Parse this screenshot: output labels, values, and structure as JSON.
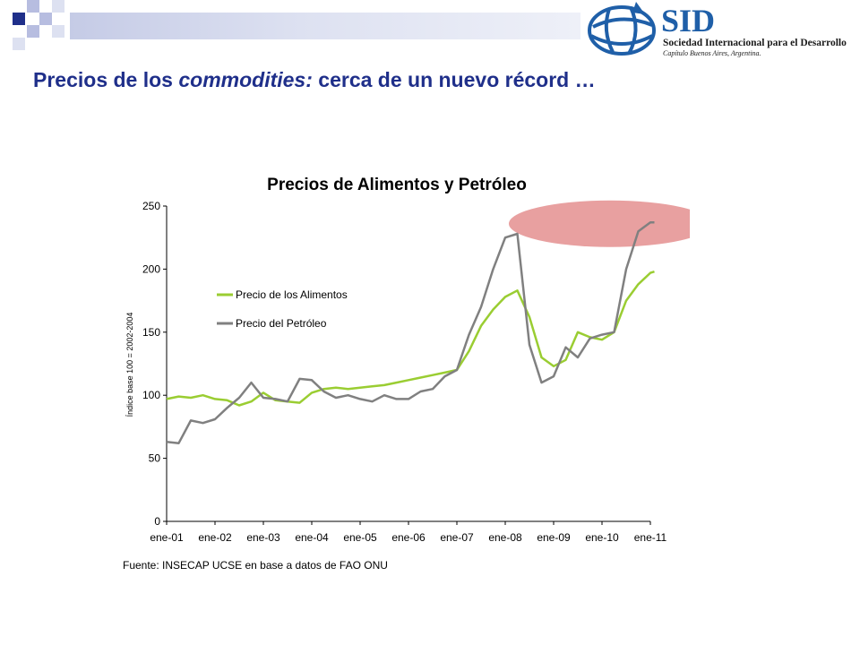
{
  "slide": {
    "title_a": "Precios de los ",
    "title_b": "commodities:",
    "title_c": " cerca de un nuevo récord …"
  },
  "logo": {
    "acronym": "SID",
    "line1": "Sociedad Internacional para el Desarrollo",
    "line2": "Capítulo Buenos Aires, Argentina."
  },
  "colors": {
    "title": "#1f2f8a",
    "deco_dark": "#1f2f8a",
    "deco_light": "#b7bde0",
    "food": "#9acd32",
    "oil": "#808080",
    "highlight": "#e8a0a0"
  },
  "chart_data": {
    "type": "line",
    "title": "Precios de Alimentos y Petróleo",
    "ylabel": "Índice base 100 = 2002-2004",
    "xlabel": "",
    "ylim": [
      0,
      250
    ],
    "yticks": [
      0,
      50,
      100,
      150,
      200,
      250
    ],
    "xticks": [
      "ene-01",
      "ene-02",
      "ene-03",
      "ene-04",
      "ene-05",
      "ene-06",
      "ene-07",
      "ene-08",
      "ene-09",
      "ene-10",
      "ene-11"
    ],
    "legend_position": "upper-left",
    "grid": false,
    "source": "Fuente: INSECAP UCSE en base a datos de FAO ONU",
    "x_months_since_jan_2001": [
      0,
      3,
      6,
      9,
      12,
      15,
      18,
      21,
      24,
      27,
      30,
      33,
      36,
      39,
      42,
      45,
      48,
      51,
      54,
      57,
      60,
      63,
      66,
      69,
      72,
      75,
      78,
      81,
      84,
      87,
      90,
      93,
      96,
      99,
      102,
      105,
      108,
      111,
      114,
      117,
      120,
      121
    ],
    "series": [
      {
        "name": "Precio de los Alimentos",
        "values": [
          97,
          99,
          98,
          100,
          97,
          96,
          92,
          95,
          102,
          96,
          95,
          94,
          102,
          105,
          106,
          105,
          106,
          107,
          108,
          110,
          112,
          114,
          116,
          118,
          120,
          135,
          155,
          168,
          178,
          183,
          162,
          130,
          123,
          128,
          150,
          146,
          144,
          150,
          175,
          188,
          197,
          198
        ]
      },
      {
        "name": "Precio del Petróleo",
        "values": [
          63,
          62,
          80,
          78,
          81,
          90,
          98,
          110,
          98,
          97,
          95,
          113,
          112,
          103,
          98,
          100,
          97,
          95,
          100,
          97,
          97,
          103,
          105,
          115,
          120,
          148,
          170,
          200,
          225,
          228,
          140,
          110,
          115,
          138,
          130,
          145,
          148,
          150,
          200,
          230,
          237,
          237
        ]
      }
    ]
  }
}
